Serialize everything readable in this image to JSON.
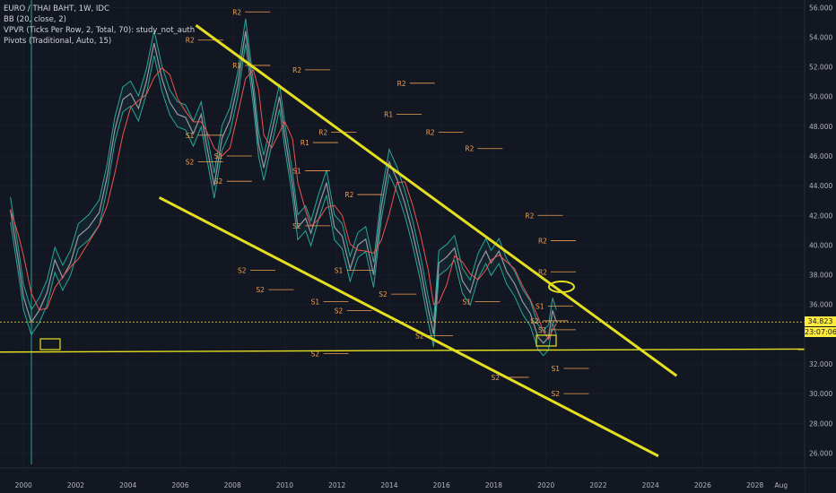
{
  "legend": {
    "symbol": "EURO / THAI BAHT, 1W, IDC",
    "bb": "BB (20, close, 2)",
    "vpvr": "VPVR (Ticks Per Row, 2, Total, 70): study_not_auth",
    "pivots": "Pivots (Traditional, Auto, 15)"
  },
  "price_axis": {
    "current_price": "34.823",
    "countdown": "23:07:06"
  },
  "colors": {
    "background": "#131722",
    "trend": "#e5e01f",
    "bb_band": "#26a69a",
    "price_line": "#9598a1",
    "ma_line": "#ef5350",
    "pivot": "#f0a050",
    "current_price": "#ffeb3b",
    "cursor_line": "#26a69a"
  },
  "chart_data": {
    "type": "line",
    "title": "EURO / THAI BAHT, 1W, IDC",
    "x_ticks": [
      "2000",
      "2002",
      "2004",
      "2006",
      "2008",
      "2010",
      "2012",
      "2014",
      "2016",
      "2018",
      "2020",
      "2022",
      "2024",
      "2026",
      "2028",
      "Aug"
    ],
    "y_ticks": [
      "26.000",
      "28.000",
      "30.000",
      "32.000",
      "34.000",
      "36.000",
      "38.000",
      "40.000",
      "42.000",
      "44.000",
      "46.000",
      "48.000",
      "50.000",
      "52.000",
      "54.000",
      "56.000"
    ],
    "ylim": [
      25,
      56.5
    ],
    "xlim": [
      1999.1,
      2029.9
    ],
    "price": [
      [
        1999.5,
        42.4
      ],
      [
        1999.8,
        39.0
      ],
      [
        2000.0,
        36.5
      ],
      [
        2000.3,
        34.8
      ],
      [
        2000.6,
        35.6
      ],
      [
        2000.9,
        36.8
      ],
      [
        2001.2,
        39.0
      ],
      [
        2001.5,
        37.8
      ],
      [
        2001.8,
        38.8
      ],
      [
        2002.1,
        40.6
      ],
      [
        2002.5,
        41.2
      ],
      [
        2002.9,
        42.2
      ],
      [
        2003.2,
        44.6
      ],
      [
        2003.5,
        47.8
      ],
      [
        2003.8,
        49.8
      ],
      [
        2004.1,
        50.2
      ],
      [
        2004.4,
        49.2
      ],
      [
        2004.7,
        51.0
      ],
      [
        2005.0,
        53.6
      ],
      [
        2005.3,
        51.2
      ],
      [
        2005.6,
        49.6
      ],
      [
        2005.9,
        48.8
      ],
      [
        2006.2,
        48.6
      ],
      [
        2006.5,
        47.5
      ],
      [
        2006.8,
        48.8
      ],
      [
        2007.0,
        46.8
      ],
      [
        2007.3,
        44.0
      ],
      [
        2007.6,
        47.2
      ],
      [
        2007.9,
        48.4
      ],
      [
        2008.2,
        50.8
      ],
      [
        2008.5,
        54.4
      ],
      [
        2008.8,
        50.2
      ],
      [
        2009.0,
        46.8
      ],
      [
        2009.2,
        45.2
      ],
      [
        2009.5,
        47.6
      ],
      [
        2009.8,
        50.0
      ],
      [
        2010.0,
        47.4
      ],
      [
        2010.3,
        44.0
      ],
      [
        2010.5,
        41.2
      ],
      [
        2010.8,
        41.8
      ],
      [
        2011.0,
        40.8
      ],
      [
        2011.3,
        42.6
      ],
      [
        2011.6,
        44.2
      ],
      [
        2011.9,
        41.2
      ],
      [
        2012.2,
        40.6
      ],
      [
        2012.5,
        38.4
      ],
      [
        2012.8,
        40.0
      ],
      [
        2013.1,
        40.4
      ],
      [
        2013.4,
        38.0
      ],
      [
        2013.7,
        42.6
      ],
      [
        2014.0,
        45.6
      ],
      [
        2014.3,
        44.4
      ],
      [
        2014.6,
        42.8
      ],
      [
        2014.9,
        40.8
      ],
      [
        2015.2,
        38.4
      ],
      [
        2015.5,
        35.6
      ],
      [
        2015.7,
        34.0
      ],
      [
        2015.9,
        38.8
      ],
      [
        2016.2,
        39.2
      ],
      [
        2016.5,
        39.8
      ],
      [
        2016.8,
        37.6
      ],
      [
        2017.1,
        36.8
      ],
      [
        2017.4,
        38.6
      ],
      [
        2017.7,
        39.6
      ],
      [
        2017.9,
        38.8
      ],
      [
        2018.2,
        39.6
      ],
      [
        2018.5,
        38.2
      ],
      [
        2018.8,
        37.4
      ],
      [
        2019.1,
        36.2
      ],
      [
        2019.4,
        35.4
      ],
      [
        2019.7,
        33.8
      ],
      [
        2019.9,
        33.4
      ],
      [
        2020.1,
        33.8
      ],
      [
        2020.25,
        35.6
      ],
      [
        2020.4,
        34.8
      ]
    ],
    "trend_lines": [
      {
        "points": [
          [
            2006.6,
            54.8
          ],
          [
            2025.0,
            31.2
          ]
        ]
      },
      {
        "points": [
          [
            2005.2,
            43.2
          ],
          [
            2024.3,
            25.8
          ]
        ]
      },
      {
        "points": [
          [
            1999.1,
            32.8
          ],
          [
            2029.9,
            33.0
          ]
        ]
      }
    ],
    "current_price": 34.823,
    "pivot_labels": [
      {
        "label": "R2",
        "x": 2008.0,
        "y": 55.7
      },
      {
        "label": "R2",
        "x": 2006.2,
        "y": 53.8
      },
      {
        "label": "R1",
        "x": 2008.0,
        "y": 52.1
      },
      {
        "label": "R2",
        "x": 2010.3,
        "y": 51.8
      },
      {
        "label": "R2",
        "x": 2014.3,
        "y": 50.9
      },
      {
        "label": "S1",
        "x": 2006.2,
        "y": 47.4
      },
      {
        "label": "S2",
        "x": 2006.2,
        "y": 45.6
      },
      {
        "label": "S1",
        "x": 2007.3,
        "y": 46.0
      },
      {
        "label": "S2",
        "x": 2007.3,
        "y": 44.3
      },
      {
        "label": "R1",
        "x": 2013.8,
        "y": 48.8
      },
      {
        "label": "R2",
        "x": 2011.3,
        "y": 47.6
      },
      {
        "label": "R2",
        "x": 2015.4,
        "y": 47.6
      },
      {
        "label": "R1",
        "x": 2010.6,
        "y": 46.9
      },
      {
        "label": "S1",
        "x": 2010.3,
        "y": 45.0
      },
      {
        "label": "R2",
        "x": 2016.9,
        "y": 46.5
      },
      {
        "label": "S2",
        "x": 2010.3,
        "y": 41.3
      },
      {
        "label": "R2",
        "x": 2012.3,
        "y": 43.4
      },
      {
        "label": "R2",
        "x": 2019.2,
        "y": 42.0
      },
      {
        "label": "R2",
        "x": 2019.7,
        "y": 40.3
      },
      {
        "label": "R2",
        "x": 2019.7,
        "y": 38.2
      },
      {
        "label": "S1",
        "x": 2011.9,
        "y": 38.3
      },
      {
        "label": "S1",
        "x": 2011.0,
        "y": 36.2
      },
      {
        "label": "S2",
        "x": 2011.9,
        "y": 35.6
      },
      {
        "label": "S2",
        "x": 2008.2,
        "y": 38.3
      },
      {
        "label": "S2",
        "x": 2008.9,
        "y": 37.0
      },
      {
        "label": "S2",
        "x": 2013.6,
        "y": 36.7
      },
      {
        "label": "S1",
        "x": 2016.8,
        "y": 36.2
      },
      {
        "label": "S1",
        "x": 2019.6,
        "y": 35.9
      },
      {
        "label": "S2",
        "x": 2019.4,
        "y": 34.9
      },
      {
        "label": "S2",
        "x": 2015.0,
        "y": 33.9
      },
      {
        "label": "S1",
        "x": 2019.7,
        "y": 34.3
      },
      {
        "label": "S2",
        "x": 2011.0,
        "y": 32.7
      },
      {
        "label": "S1",
        "x": 2020.2,
        "y": 31.7
      },
      {
        "label": "S2",
        "x": 2017.9,
        "y": 31.1
      },
      {
        "label": "S2",
        "x": 2020.2,
        "y": 30.0
      }
    ]
  }
}
